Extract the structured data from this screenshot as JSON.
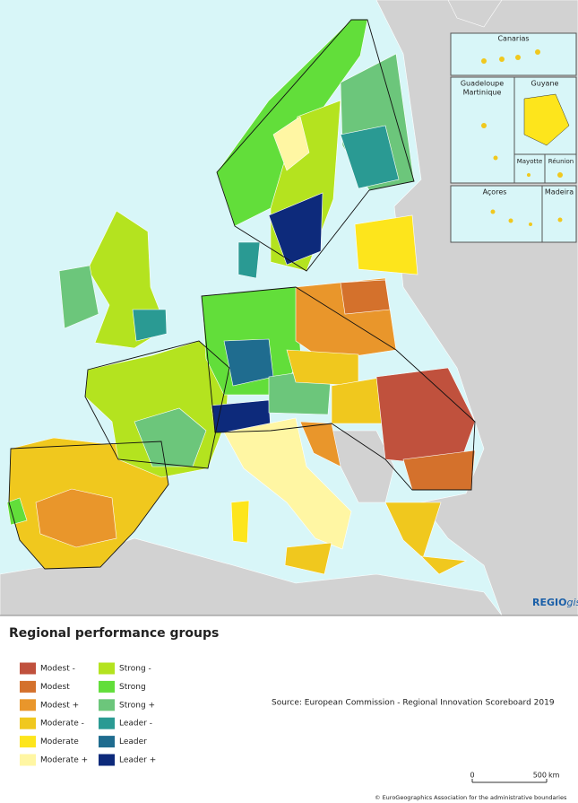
{
  "map": {
    "logo": {
      "main": "REGIO",
      "suffix": "gis"
    },
    "insets": {
      "canarias": "Canarias",
      "guadeloupe": [
        "Guadeloupe",
        "Martinique"
      ],
      "guyane": "Guyane",
      "mayotte": "Mayotte",
      "reunion": "Réunion",
      "acores": "Açores",
      "madeira": "Madeira"
    }
  },
  "legend": {
    "title": "Regional performance groups",
    "items": [
      {
        "label": "Modest -",
        "color": "#c0513d"
      },
      {
        "label": "Modest",
        "color": "#d4712c"
      },
      {
        "label": "Modest +",
        "color": "#e9962b"
      },
      {
        "label": "Moderate -",
        "color": "#f0c81e"
      },
      {
        "label": "Moderate",
        "color": "#fde51c"
      },
      {
        "label": "Moderate +",
        "color": "#fff6a3"
      },
      {
        "label": "Strong -",
        "color": "#b4e31f"
      },
      {
        "label": "Strong",
        "color": "#62de3a"
      },
      {
        "label": "Strong +",
        "color": "#6cc67b"
      },
      {
        "label": "Leader -",
        "color": "#2a9a93"
      },
      {
        "label": "Leader",
        "color": "#1f6c8f"
      },
      {
        "label": "Leader +",
        "color": "#0d2a7b"
      }
    ]
  },
  "source": "Source: European Commission - Regional Innovation Scoreboard 2019",
  "scale": {
    "ticks": [
      0,
      500
    ],
    "unit": "km"
  },
  "copyright": "© EuroGeographics Association for the administrative boundaries"
}
